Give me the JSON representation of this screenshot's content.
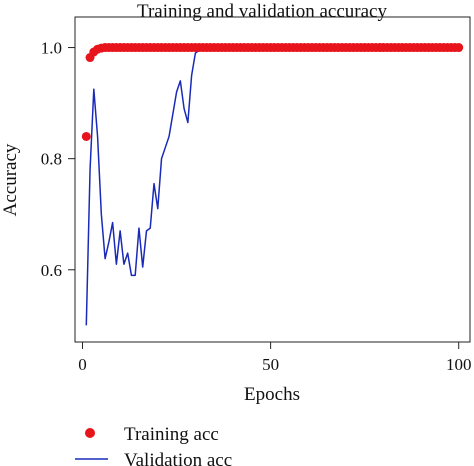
{
  "chart_data": {
    "type": "line",
    "title": "Training and validation accuracy",
    "xlabel": "Epochs",
    "ylabel": "Accuracy",
    "xlim": [
      -2,
      103
    ],
    "ylim": [
      0.47,
      1.055
    ],
    "xticks": [
      0,
      50,
      100
    ],
    "yticks": [
      0.6,
      0.8,
      1.0
    ],
    "ytick_labels": [
      "0.6",
      "0.8",
      "1.0"
    ],
    "grid": false,
    "legend_position": "bottom",
    "series": [
      {
        "name": "Training acc",
        "style": "markers",
        "color": "#e8141c",
        "x": [
          1,
          2,
          3,
          4,
          5,
          6,
          7,
          8,
          9,
          10,
          11,
          12,
          13,
          14,
          15,
          16,
          17,
          18,
          19,
          20,
          21,
          22,
          23,
          24,
          25,
          26,
          27,
          28,
          29,
          30,
          31,
          32,
          33,
          34,
          35,
          36,
          37,
          38,
          39,
          40,
          41,
          42,
          43,
          44,
          45,
          46,
          47,
          48,
          49,
          50,
          51,
          52,
          53,
          54,
          55,
          56,
          57,
          58,
          59,
          60,
          61,
          62,
          63,
          64,
          65,
          66,
          67,
          68,
          69,
          70,
          71,
          72,
          73,
          74,
          75,
          76,
          77,
          78,
          79,
          80,
          81,
          82,
          83,
          84,
          85,
          86,
          87,
          88,
          89,
          90,
          91,
          92,
          93,
          94,
          95,
          96,
          97,
          98,
          99,
          100
        ],
        "y": [
          0.84,
          0.982,
          0.992,
          0.997,
          0.999,
          1.0,
          1.0,
          1.0,
          1.0,
          1.0,
          1.0,
          1.0,
          1.0,
          1.0,
          1.0,
          1.0,
          1.0,
          1.0,
          1.0,
          1.0,
          1.0,
          1.0,
          1.0,
          1.0,
          1.0,
          1.0,
          1.0,
          1.0,
          1.0,
          1.0,
          1.0,
          1.0,
          1.0,
          1.0,
          1.0,
          1.0,
          1.0,
          1.0,
          1.0,
          1.0,
          1.0,
          1.0,
          1.0,
          1.0,
          1.0,
          1.0,
          1.0,
          1.0,
          1.0,
          1.0,
          1.0,
          1.0,
          1.0,
          1.0,
          1.0,
          1.0,
          1.0,
          1.0,
          1.0,
          1.0,
          1.0,
          1.0,
          1.0,
          1.0,
          1.0,
          1.0,
          1.0,
          1.0,
          1.0,
          1.0,
          1.0,
          1.0,
          1.0,
          1.0,
          1.0,
          1.0,
          1.0,
          1.0,
          1.0,
          1.0,
          1.0,
          1.0,
          1.0,
          1.0,
          1.0,
          1.0,
          1.0,
          1.0,
          1.0,
          1.0,
          1.0,
          1.0,
          1.0,
          1.0,
          1.0,
          1.0,
          1.0,
          1.0,
          1.0,
          1.0
        ]
      },
      {
        "name": "Validation acc",
        "style": "line",
        "color": "#1a2ab8",
        "x": [
          1,
          2,
          3,
          4,
          5,
          6,
          7,
          8,
          9,
          10,
          11,
          12,
          13,
          14,
          15,
          16,
          17,
          18,
          19,
          20,
          21,
          22,
          23,
          24,
          25,
          26,
          27,
          28,
          29,
          30,
          31,
          32,
          33,
          34,
          35,
          36,
          37,
          38,
          39,
          40,
          41,
          42,
          43,
          44,
          45,
          46,
          47,
          48,
          49,
          50,
          51,
          52,
          53,
          54,
          55,
          56,
          57,
          58,
          59,
          60,
          61,
          62,
          63,
          64,
          65,
          66,
          67,
          68,
          69,
          70,
          71,
          72,
          73,
          74,
          75,
          76,
          77,
          78,
          79,
          80,
          81,
          82,
          83,
          84,
          85,
          86,
          87,
          88,
          89,
          90,
          91,
          92,
          93,
          94,
          95,
          96,
          97,
          98,
          99,
          100
        ],
        "y": [
          0.5,
          0.78,
          0.925,
          0.84,
          0.7,
          0.62,
          0.65,
          0.685,
          0.61,
          0.67,
          0.61,
          0.63,
          0.59,
          0.59,
          0.675,
          0.605,
          0.67,
          0.675,
          0.755,
          0.71,
          0.8,
          0.82,
          0.84,
          0.88,
          0.92,
          0.94,
          0.89,
          0.865,
          0.95,
          0.99,
          0.995,
          0.995,
          0.995,
          0.995,
          0.995,
          1.0,
          1.0,
          1.0,
          1.0,
          1.0,
          1.0,
          1.0,
          1.0,
          1.0,
          1.0,
          1.0,
          1.0,
          1.0,
          1.0,
          1.0,
          1.0,
          1.0,
          1.0,
          1.0,
          1.0,
          1.0,
          1.0,
          1.0,
          1.0,
          1.0,
          1.0,
          1.0,
          1.0,
          1.0,
          1.0,
          1.0,
          1.0,
          1.0,
          1.0,
          1.0,
          1.0,
          1.0,
          1.0,
          1.0,
          1.0,
          1.0,
          1.0,
          1.0,
          1.0,
          1.0,
          1.0,
          1.0,
          1.0,
          1.0,
          1.0,
          1.0,
          1.0,
          1.0,
          1.0,
          1.0,
          1.0,
          1.0,
          1.0,
          1.0,
          1.0,
          1.0,
          1.0,
          1.0,
          1.0,
          1.0
        ]
      }
    ]
  }
}
